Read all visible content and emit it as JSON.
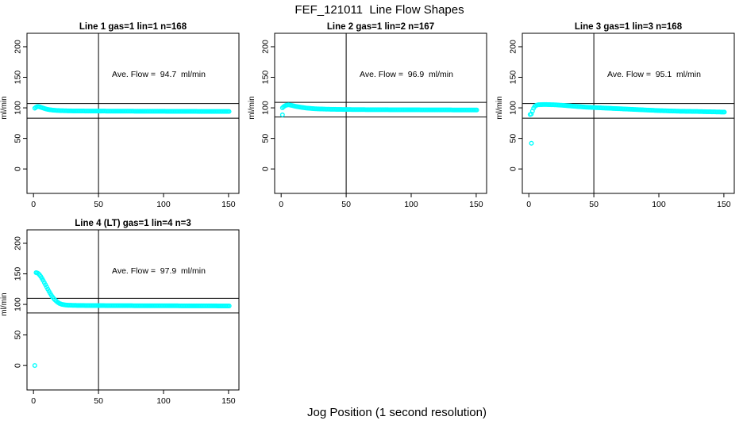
{
  "figure": {
    "title": "FEF_121011  Line Flow Shapes",
    "xlabel": "Jog Position (1 second resolution)"
  },
  "chart_data": {
    "type": "scatter",
    "title": "FEF_121011  Line Flow Shapes",
    "xlabel": "Jog Position (1 second resolution)",
    "ylabel": "ml/min",
    "point_color": "#00FFFF",
    "axis_color": "#000000",
    "background_color": "#ffffff",
    "grid": false,
    "x_ticks": [
      0,
      50,
      100,
      150
    ],
    "y_ticks": [
      0,
      50,
      100,
      150,
      200
    ],
    "xlim": [
      -5,
      158
    ],
    "ylim": [
      -40,
      222
    ],
    "vline_x": 50,
    "layout": "2 rows x 3 cols; subplots 1-3 on row 1, subplot 4 on row 2 col 1",
    "subplots": [
      {
        "title": "Line 1 gas=1 lin=1 n=168",
        "annotation": "Ave. Flow =  94.7  ml/min",
        "ave_flow_ml_min": 94.7,
        "n_points": 168,
        "hlines": [
          107,
          83
        ],
        "curve_keypoints": [
          [
            1,
            99.5
          ],
          [
            2,
            101
          ],
          [
            3,
            102
          ],
          [
            4,
            102
          ],
          [
            5,
            101.5
          ],
          [
            7,
            100
          ],
          [
            9,
            98.5
          ],
          [
            12,
            97
          ],
          [
            16,
            96
          ],
          [
            20,
            95.5
          ],
          [
            28,
            95
          ],
          [
            40,
            94.8
          ],
          [
            60,
            94.6
          ],
          [
            90,
            94.4
          ],
          [
            120,
            94.2
          ],
          [
            151,
            94
          ]
        ],
        "outlier_points": []
      },
      {
        "title": "Line 2 gas=1 lin=2 n=167",
        "annotation": "Ave. Flow =  96.9  ml/min",
        "ave_flow_ml_min": 96.9,
        "n_points": 167,
        "hlines": [
          109,
          85
        ],
        "curve_keypoints": [
          [
            1,
            100
          ],
          [
            2,
            102
          ],
          [
            3,
            103.5
          ],
          [
            4,
            104.5
          ],
          [
            6,
            105
          ],
          [
            8,
            104
          ],
          [
            11,
            102.5
          ],
          [
            15,
            101
          ],
          [
            20,
            99.5
          ],
          [
            26,
            98.5
          ],
          [
            35,
            97.8
          ],
          [
            50,
            97.3
          ],
          [
            70,
            97
          ],
          [
            100,
            96.8
          ],
          [
            130,
            96.6
          ],
          [
            151,
            96.5
          ]
        ],
        "outlier_points": [
          [
            1,
            88.5
          ]
        ]
      },
      {
        "title": "Line 3 gas=1 lin=3 n=168",
        "annotation": "Ave. Flow =  95.1  ml/min",
        "ave_flow_ml_min": 95.1,
        "n_points": 168,
        "hlines": [
          107,
          83
        ],
        "curve_keypoints": [
          [
            1,
            89
          ],
          [
            2,
            90
          ],
          [
            3,
            96
          ],
          [
            4,
            101
          ],
          [
            5,
            103.5
          ],
          [
            7,
            105
          ],
          [
            12,
            105.5
          ],
          [
            20,
            105
          ],
          [
            27,
            104
          ],
          [
            35,
            102.5
          ],
          [
            45,
            101
          ],
          [
            55,
            100
          ],
          [
            70,
            98.5
          ],
          [
            85,
            97
          ],
          [
            100,
            95.5
          ],
          [
            115,
            94.5
          ],
          [
            130,
            94
          ],
          [
            151,
            93
          ]
        ],
        "outlier_points": [
          [
            2,
            42
          ]
        ]
      },
      {
        "title": "Line 4 (LT) gas=1 lin=4 n=3",
        "annotation": "Ave. Flow =  97.9  ml/min",
        "ave_flow_ml_min": 97.9,
        "n_points": 3,
        "hlines": [
          110,
          86
        ],
        "curve_keypoints": [
          [
            2,
            152
          ],
          [
            3,
            151.5
          ],
          [
            4,
            150
          ],
          [
            5,
            147.5
          ],
          [
            6,
            144.5
          ],
          [
            7,
            141
          ],
          [
            8,
            137
          ],
          [
            9,
            133
          ],
          [
            10,
            129
          ],
          [
            11,
            125
          ],
          [
            12,
            121
          ],
          [
            13,
            117.5
          ],
          [
            14,
            114
          ],
          [
            15,
            111
          ],
          [
            16,
            108.5
          ],
          [
            17,
            106.5
          ],
          [
            18,
            104.5
          ],
          [
            19,
            103
          ],
          [
            20,
            101.5
          ],
          [
            22,
            100
          ],
          [
            24,
            99.2
          ],
          [
            27,
            98.7
          ],
          [
            32,
            98.4
          ],
          [
            40,
            98.2
          ],
          [
            60,
            98
          ],
          [
            90,
            97.8
          ],
          [
            120,
            97.7
          ],
          [
            151,
            97.5
          ]
        ],
        "outlier_points": [
          [
            1,
            0
          ]
        ]
      }
    ]
  }
}
